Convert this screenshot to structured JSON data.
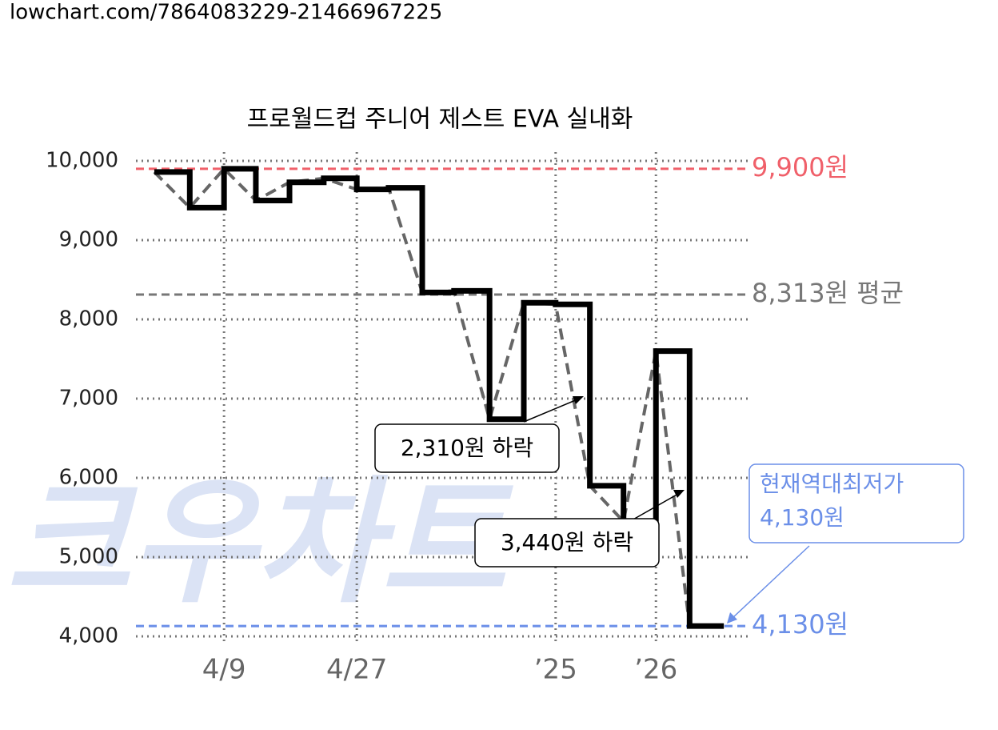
{
  "url": "lowchart.com/7864083229-21466967225",
  "chart_data": {
    "type": "step-line",
    "title": "프로월드컵 주니어 제스트 EVA 실내화",
    "watermark": "크우차트",
    "x": [
      3,
      8.8,
      14.4,
      19.6,
      25.1,
      30.7,
      36.1,
      41.3,
      46.8,
      52,
      57.8,
      63.4,
      68.6,
      74.2,
      79.7,
      85,
      90.5,
      96.1
    ],
    "series": [
      {
        "color": "#000000",
        "values": [
          9860,
          9410,
          9900,
          9500,
          9730,
          9780,
          9640,
          9660,
          8340,
          8360,
          6740,
          8210,
          8190,
          5900,
          5450,
          7600,
          4130,
          4130
        ]
      }
    ],
    "xlim": [
      0,
      100
    ],
    "xticks": [
      {
        "value": 14.4,
        "label": "4/9"
      },
      {
        "value": 36.1,
        "label": "4/27"
      },
      {
        "value": 68.6,
        "label": "’25"
      },
      {
        "value": 85,
        "label": "’26"
      }
    ],
    "ylim": [
      4000,
      10000
    ],
    "yticks": [
      {
        "value": 4000,
        "label": "4,000"
      },
      {
        "value": 5000,
        "label": "5,000"
      },
      {
        "value": 6000,
        "label": "6,000"
      },
      {
        "value": 7000,
        "label": "7,000"
      },
      {
        "value": 8000,
        "label": "8,000"
      },
      {
        "value": 9000,
        "label": "9,000"
      },
      {
        "value": 10000,
        "label": "10,000"
      }
    ],
    "grid": true,
    "reference_lines": [
      {
        "value": 9900,
        "label": "9,900원",
        "color": "#f0606a"
      },
      {
        "value": 8313,
        "label": "8,313원 평균",
        "color": "#777777"
      },
      {
        "value": 4130,
        "label": "4,130원",
        "color": "#6b8fe8"
      }
    ],
    "annotations": [
      {
        "text": "2,310원 하락"
      },
      {
        "text": "3,440원 하락"
      },
      {
        "lines": [
          "현재역대최저가",
          "4,130원"
        ],
        "color": "#6b8fe8"
      }
    ]
  }
}
